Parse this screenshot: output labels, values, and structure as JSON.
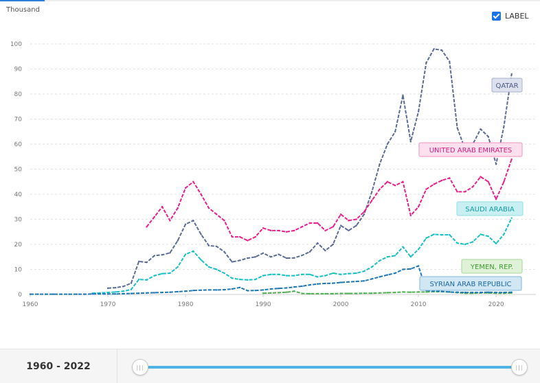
{
  "unit_label": "Thousand",
  "label_toggle": {
    "text": "LABEL",
    "checked": true
  },
  "range": {
    "start": "1960",
    "sep": " - ",
    "end": "2022"
  },
  "slider": {
    "min": 1960,
    "max": 2022,
    "from": 1960,
    "to": 2022,
    "handle_glyph": "|||"
  },
  "chart_data": {
    "type": "line",
    "xlim": [
      1960,
      2023
    ],
    "ylim": [
      0,
      100
    ],
    "y_ticks": [
      0,
      10,
      20,
      30,
      40,
      50,
      60,
      70,
      80,
      90,
      100
    ],
    "x_ticks": [
      1960,
      1970,
      1980,
      1990,
      2000,
      2010,
      2020
    ],
    "grid": true,
    "series": [
      {
        "name": "QATAR",
        "color": "#5b6b95",
        "tag_bg": "#dde1ee",
        "tag_border": "#a8b2cf",
        "tag_text": "#4a5a85",
        "x": [
          1970,
          1971,
          1972,
          1973,
          1974,
          1975,
          1976,
          1977,
          1978,
          1979,
          1980,
          1981,
          1982,
          1983,
          1984,
          1985,
          1986,
          1987,
          1988,
          1989,
          1990,
          1991,
          1992,
          1993,
          1994,
          1995,
          1996,
          1997,
          1998,
          1999,
          2000,
          2001,
          2002,
          2003,
          2004,
          2005,
          2006,
          2007,
          2008,
          2009,
          2010,
          2011,
          2012,
          2013,
          2014,
          2015,
          2016,
          2017,
          2018,
          2019,
          2020,
          2021,
          2022
        ],
        "values": [
          2.5,
          2.7,
          3.2,
          4.5,
          13.2,
          12.8,
          15.5,
          15.8,
          16.6,
          21.5,
          28,
          29.5,
          24,
          19.5,
          19.2,
          17,
          13,
          13.6,
          14.5,
          15,
          16.5,
          15,
          16,
          14.5,
          14.6,
          15.6,
          17,
          20.5,
          17.5,
          20,
          27.5,
          25.5,
          27.5,
          32,
          41,
          52,
          60,
          65,
          79.5,
          61,
          73,
          92.5,
          98,
          97.5,
          93,
          66.5,
          58,
          60,
          66,
          63,
          52,
          67,
          88
        ]
      },
      {
        "name": "UNITED ARAB EMIRATES",
        "color": "#e91e8c",
        "tag_bg": "#fde0ee",
        "tag_border": "#f28fbd",
        "tag_text": "#d81b7f",
        "x": [
          1975,
          1976,
          1977,
          1978,
          1979,
          1980,
          1981,
          1982,
          1983,
          1984,
          1985,
          1986,
          1987,
          1988,
          1989,
          1990,
          1991,
          1992,
          1993,
          1994,
          1995,
          1996,
          1997,
          1998,
          1999,
          2000,
          2001,
          2002,
          2003,
          2004,
          2005,
          2006,
          2007,
          2008,
          2009,
          2010,
          2011,
          2012,
          2013,
          2014,
          2015,
          2016,
          2017,
          2018,
          2019,
          2020,
          2021,
          2022
        ],
        "values": [
          27,
          31,
          35,
          29.5,
          34.5,
          42.5,
          45,
          40,
          34.5,
          32,
          29.5,
          23,
          23,
          21.5,
          23,
          26.5,
          25.5,
          25.5,
          25,
          25.5,
          27,
          28.5,
          28.5,
          25.5,
          27,
          32,
          29.5,
          30,
          33,
          37.5,
          42,
          45,
          43.5,
          45,
          31.5,
          35,
          42,
          44,
          45.5,
          46.5,
          41,
          41,
          43,
          47,
          45,
          38,
          45,
          54
        ]
      },
      {
        "name": "SAUDI ARABIA",
        "color": "#17bfc4",
        "tag_bg": "#c8eff1",
        "tag_border": "#8fdde0",
        "tag_text": "#149aa0",
        "x": [
          1968,
          1969,
          1970,
          1971,
          1972,
          1973,
          1974,
          1975,
          1976,
          1977,
          1978,
          1979,
          1980,
          1981,
          1982,
          1983,
          1984,
          1985,
          1986,
          1987,
          1988,
          1989,
          1990,
          1991,
          1992,
          1993,
          1994,
          1995,
          1996,
          1997,
          1998,
          1999,
          2000,
          2001,
          2002,
          2003,
          2004,
          2005,
          2006,
          2007,
          2008,
          2009,
          2010,
          2011,
          2012,
          2013,
          2014,
          2015,
          2016,
          2017,
          2018,
          2019,
          2020,
          2021,
          2022
        ],
        "values": [
          0.5,
          0.6,
          0.8,
          1.0,
          1.3,
          2.0,
          6.0,
          5.8,
          7.5,
          8.3,
          8.5,
          11,
          16,
          17.3,
          13.8,
          11,
          10,
          8.5,
          6.5,
          6,
          5.8,
          6,
          7.5,
          8,
          8,
          7.5,
          7.5,
          8,
          8,
          7,
          7.5,
          8.5,
          8,
          8.3,
          8.5,
          9.3,
          11,
          13.5,
          15,
          15.5,
          19,
          15,
          18,
          22.5,
          24,
          23.8,
          23.8,
          20.5,
          20,
          21,
          24,
          23.2,
          20.3,
          24,
          30.5
        ]
      },
      {
        "name": "YEMEN, REP.",
        "color": "#4caf50",
        "tag_bg": "#dff2d8",
        "tag_border": "#a6d897",
        "tag_text": "#3f9a2f",
        "x": [
          1990,
          1991,
          1992,
          1993,
          1994,
          1995,
          1996,
          1997,
          1998,
          1999,
          2000,
          2001,
          2002,
          2003,
          2004,
          2005,
          2006,
          2007,
          2008,
          2009,
          2010,
          2011,
          2012,
          2013,
          2014,
          2015,
          2016,
          2017,
          2018,
          2019,
          2020,
          2021,
          2022
        ],
        "values": [
          0.5,
          0.6,
          0.7,
          0.9,
          1.3,
          0.4,
          0.3,
          0.3,
          0.3,
          0.3,
          0.4,
          0.4,
          0.4,
          0.5,
          0.5,
          0.6,
          0.7,
          0.8,
          1.0,
          0.9,
          1.0,
          1.0,
          1.1,
          1.1,
          1.0,
          0.7,
          0.5,
          0.5,
          0.6,
          0.6,
          0.5,
          0.5,
          0.6
        ]
      },
      {
        "name": "SYRIAN ARAB REPUBLIC",
        "color": "#1f78b4",
        "tag_bg": "#d2e7f4",
        "tag_border": "#7fb6dc",
        "tag_text": "#1a66a0",
        "x": [
          1960,
          1961,
          1962,
          1963,
          1964,
          1965,
          1966,
          1967,
          1968,
          1969,
          1970,
          1971,
          1972,
          1973,
          1974,
          1975,
          1976,
          1977,
          1978,
          1979,
          1980,
          1981,
          1982,
          1983,
          1984,
          1985,
          1986,
          1987,
          1988,
          1989,
          1990,
          1991,
          1992,
          1993,
          1994,
          1995,
          1996,
          1997,
          1998,
          1999,
          2000,
          2001,
          2002,
          2003,
          2004,
          2005,
          2006,
          2007,
          2008,
          2009,
          2010,
          2011,
          2012,
          2013,
          2014,
          2015,
          2016,
          2017,
          2018,
          2019,
          2020,
          2021,
          2022
        ],
        "values": [
          0.1,
          0.1,
          0.1,
          0.1,
          0.1,
          0.1,
          0.1,
          0.1,
          0.2,
          0.2,
          0.2,
          0.2,
          0.3,
          0.4,
          0.5,
          0.6,
          0.7,
          0.8,
          0.9,
          1.1,
          1.3,
          1.6,
          1.7,
          1.8,
          1.8,
          1.9,
          2.2,
          2.8,
          1.5,
          1.6,
          1.8,
          2.2,
          2.4,
          2.6,
          3.0,
          3.3,
          3.8,
          4.2,
          4.4,
          4.5,
          4.8,
          5.0,
          5.2,
          5.4,
          6.2,
          7.0,
          7.8,
          8.5,
          10.0,
          10.2,
          11.4,
          1.6,
          1.3,
          1.2,
          1.0,
          0.9,
          0.8,
          0.8,
          0.8,
          0.9,
          0.8,
          0.8,
          0.9
        ]
      }
    ]
  }
}
